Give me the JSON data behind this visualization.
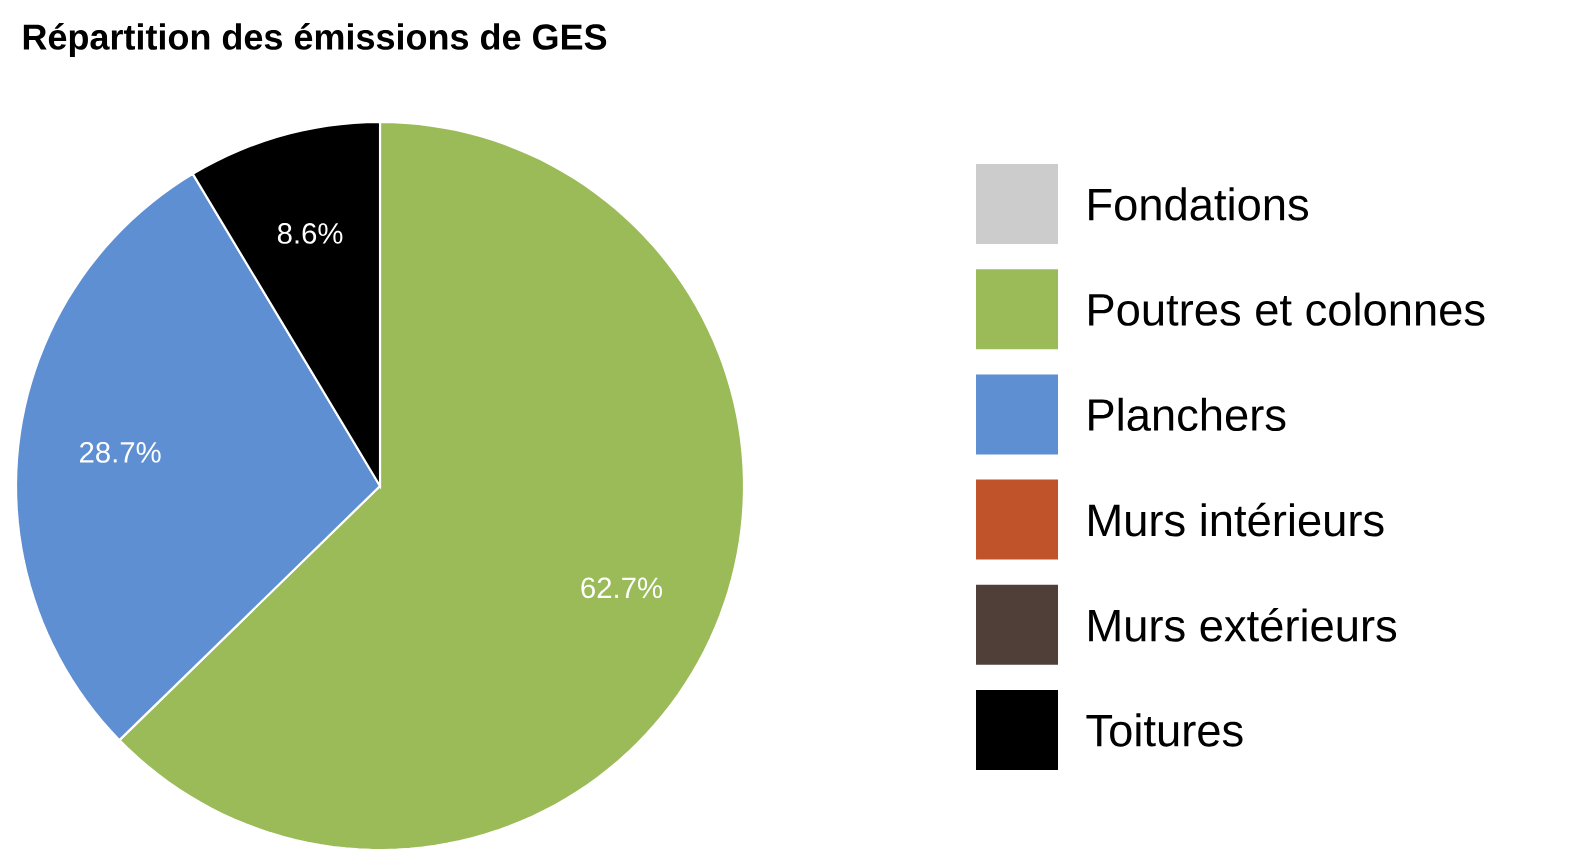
{
  "chart_data": {
    "type": "pie",
    "title": "Répartition des émissions de GES",
    "categories": [
      "Fondations",
      "Poutres et colonnes",
      "Planchers",
      "Murs intérieurs",
      "Murs extérieurs",
      "Toitures"
    ],
    "values": [
      0,
      62.7,
      28.7,
      0,
      0,
      8.6
    ],
    "colors": [
      "#cccccc",
      "#9bbb59",
      "#5f8fd3",
      "#c0532a",
      "#4f3f38",
      "#000000"
    ],
    "value_labels": [
      null,
      "62.7%",
      "28.7%",
      null,
      null,
      "8.6%"
    ],
    "legend": "right"
  }
}
